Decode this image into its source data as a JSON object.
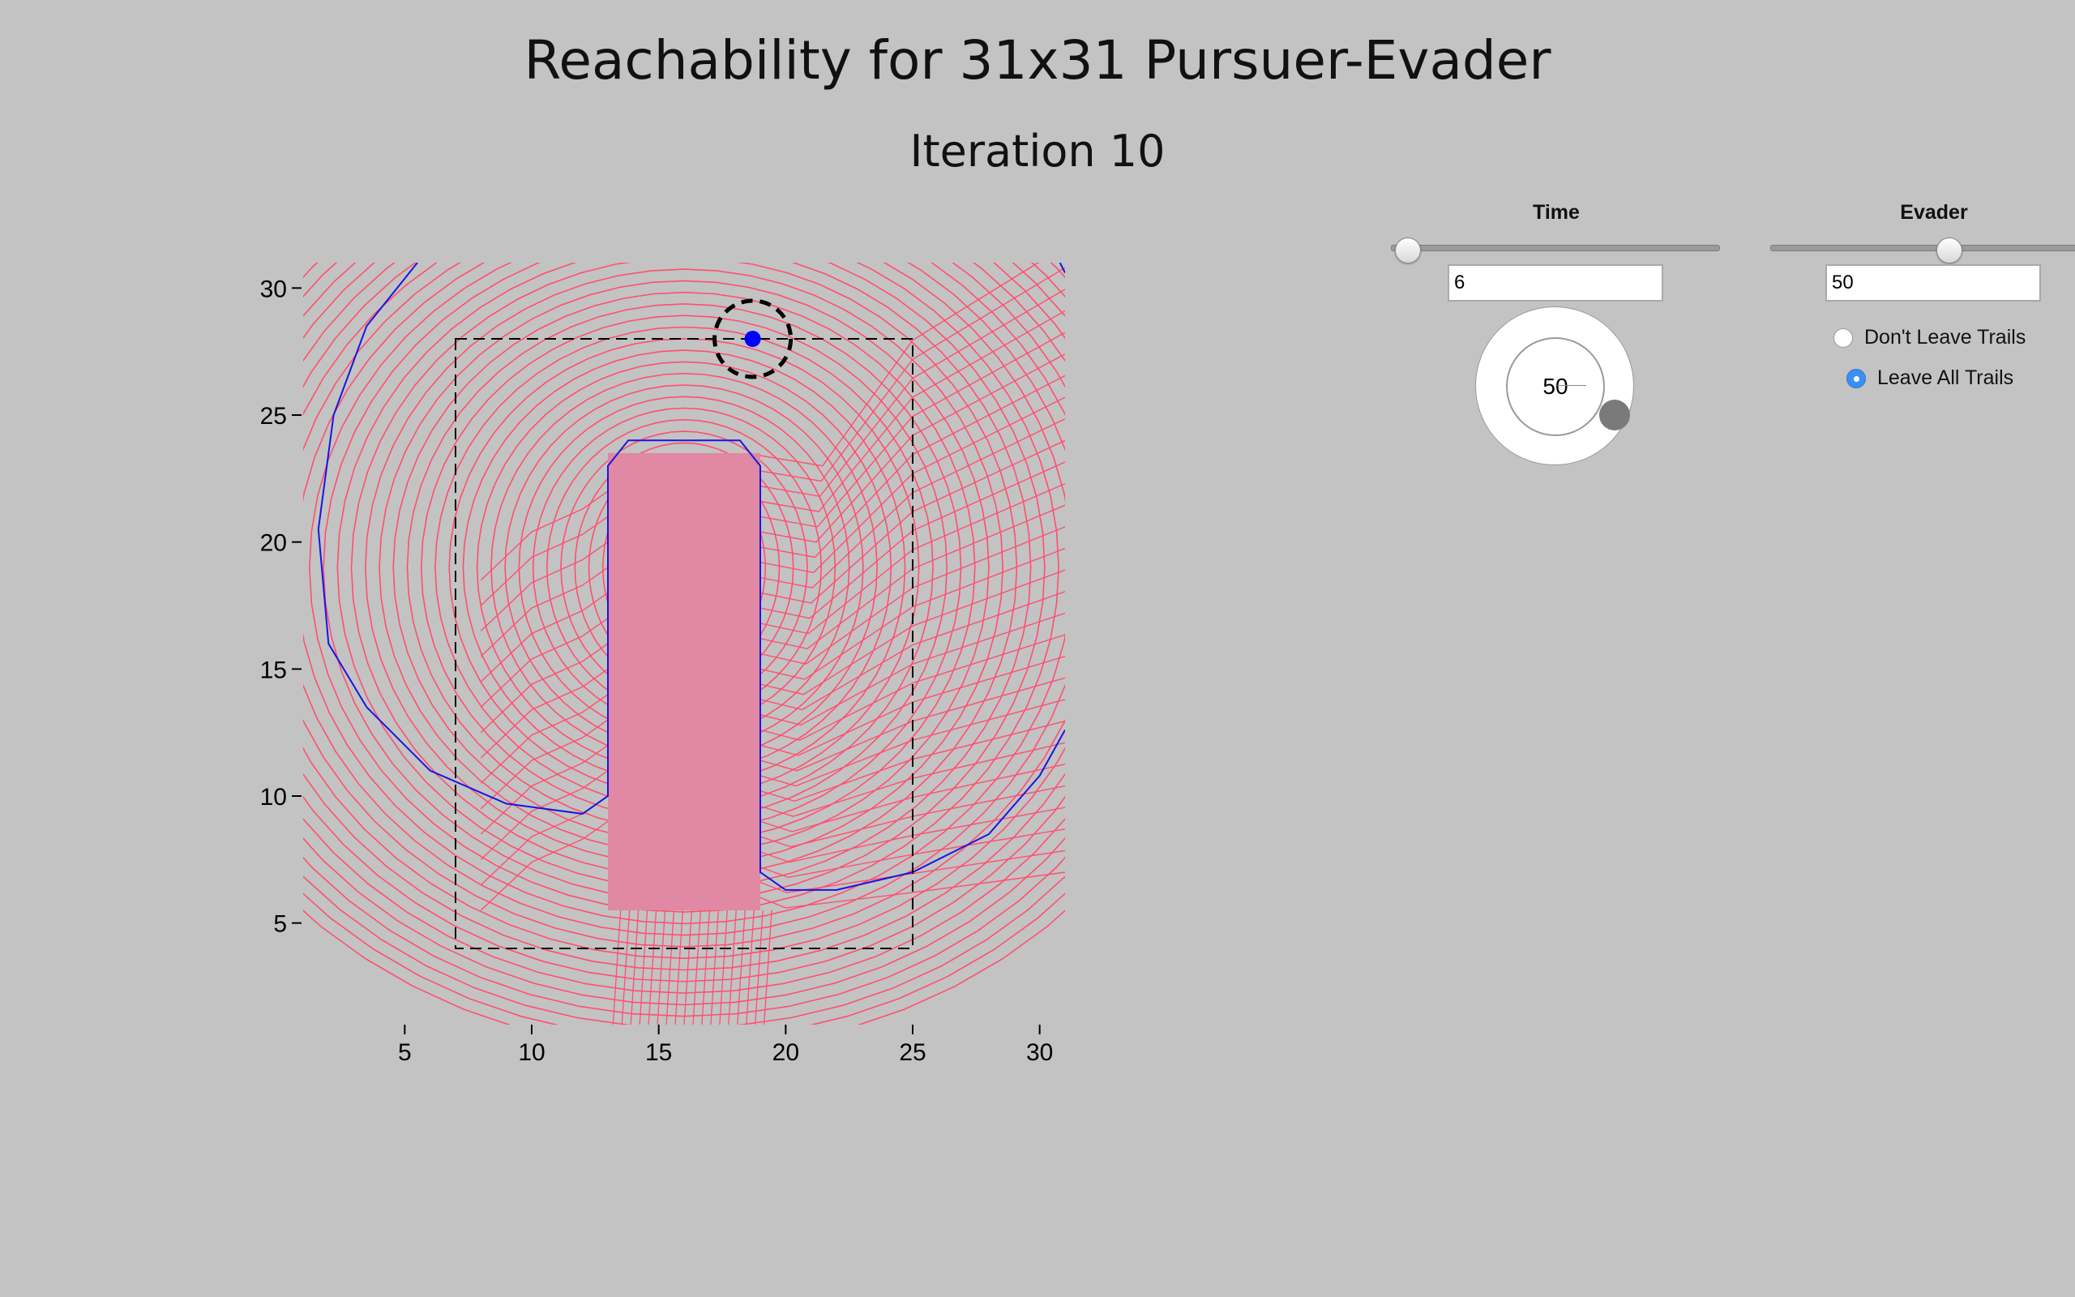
{
  "page": {
    "title": "Reachability for 31x31 Pursuer-Evader",
    "subtitle": "Iteration 10"
  },
  "controls": {
    "time": {
      "label": "Time",
      "value": "6",
      "slider_fraction": 0.05
    },
    "evader": {
      "label": "Evader",
      "value": "50",
      "slider_fraction": 0.58
    },
    "knob": {
      "value": "50"
    },
    "trails": {
      "options": [
        "Don't Leave Trails",
        "Leave All Trails"
      ],
      "selected": 1
    }
  },
  "chart_data": {
    "type": "line",
    "xlim": [
      1,
      31
    ],
    "ylim": [
      1,
      31
    ],
    "x_ticks": [
      5,
      10,
      15,
      20,
      25,
      30
    ],
    "y_ticks": [
      5,
      10,
      15,
      20,
      25,
      30
    ],
    "colors": {
      "reach_contours": "#ff4f6e",
      "boundary": "#1a14e0",
      "obstacle_fill": "#e088a4",
      "pursuer": "#0000ff",
      "frame": "#000000"
    },
    "obstacle": {
      "x": [
        13,
        19
      ],
      "y": [
        5.5,
        23.5
      ]
    },
    "dashed_region": {
      "x": [
        7,
        25
      ],
      "y": [
        4,
        28
      ]
    },
    "pursuer": {
      "x": 18.7,
      "y": 28
    },
    "capture_radius": 1.5,
    "boundary_curves": [
      [
        [
          5.5,
          31
        ],
        [
          3.5,
          28.5
        ],
        [
          2.2,
          25
        ],
        [
          1.6,
          20.5
        ],
        [
          2,
          16
        ],
        [
          3.5,
          13.5
        ],
        [
          6,
          11
        ],
        [
          9,
          9.7
        ],
        [
          12,
          9.3
        ],
        [
          13,
          10
        ],
        [
          13,
          23
        ],
        [
          13.8,
          24
        ],
        [
          18.2,
          24
        ],
        [
          19,
          23
        ],
        [
          19,
          7
        ],
        [
          20,
          6.3
        ],
        [
          22,
          6.3
        ],
        [
          25,
          7
        ],
        [
          28,
          8.5
        ],
        [
          30,
          10.8
        ],
        [
          31,
          12.6
        ]
      ],
      [
        [
          30.8,
          31
        ],
        [
          31,
          30.6
        ]
      ]
    ]
  }
}
